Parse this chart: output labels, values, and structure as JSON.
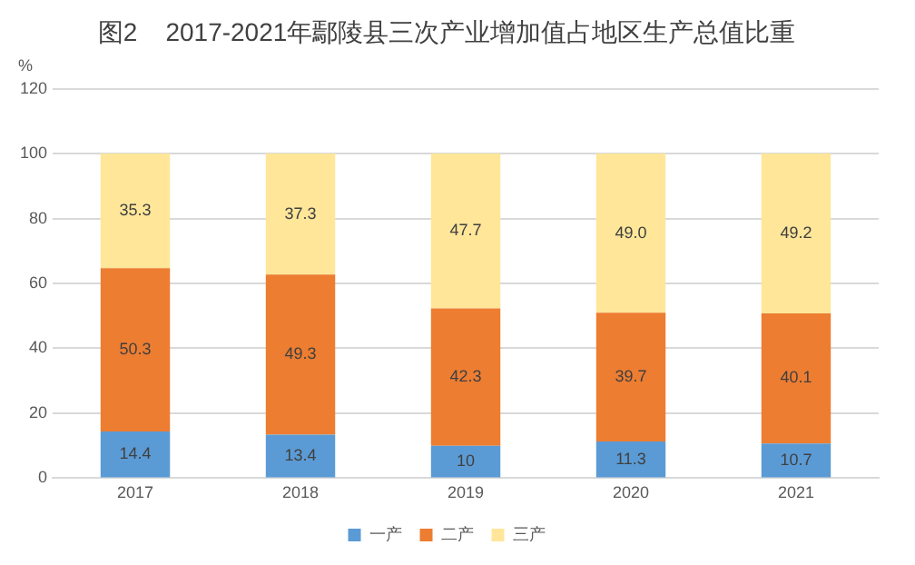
{
  "chart_data": {
    "type": "bar",
    "title": "图2    2017-2021年鄢陵县三次产业增加值占地区生产总值比重",
    "ylabel": "%",
    "categories": [
      "2017",
      "2018",
      "2019",
      "2020",
      "2021"
    ],
    "stacked": true,
    "ylim": [
      0,
      120
    ],
    "yticks": [
      0,
      20,
      40,
      60,
      80,
      100,
      120
    ],
    "grid": "y",
    "legend": "bottom",
    "series": [
      {
        "name": "一产",
        "color": "#5b9bd5",
        "values": [
          14.4,
          13.4,
          10,
          11.3,
          10.7
        ],
        "value_labels": [
          "14.4",
          "13.4",
          "10",
          "11.3",
          "10.7"
        ]
      },
      {
        "name": "二产",
        "color": "#ed7d31",
        "values": [
          50.3,
          49.3,
          42.3,
          39.7,
          40.1
        ],
        "value_labels": [
          "50.3",
          "49.3",
          "42.3",
          "39.7",
          "40.1"
        ]
      },
      {
        "name": "三产",
        "color": "#ffe699",
        "values": [
          35.3,
          37.3,
          47.7,
          49.0,
          49.2
        ],
        "value_labels": [
          "35.3",
          "37.3",
          "47.7",
          "49.0",
          "49.2"
        ]
      }
    ]
  }
}
